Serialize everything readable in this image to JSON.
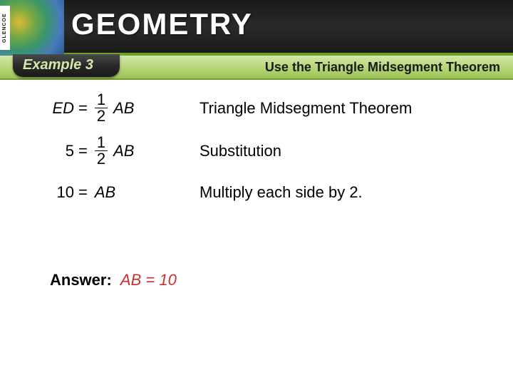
{
  "header": {
    "brand_tab": "GLENCOE",
    "title": "GEOMETRY",
    "swirl_colors": [
      "#e8c23a",
      "#7fb043",
      "#3a9b6f",
      "#4a7fc4",
      "#2a5a8a"
    ],
    "bg_gradient": [
      "#1a1a1a",
      "#2a2a2a",
      "#1a1a1a"
    ],
    "accent_border": "#6aa22f"
  },
  "subbar": {
    "example_label": "Example 3",
    "topic": "Use the Triangle Midsegment Theorem",
    "bg_gradient": [
      "#d4e8a8",
      "#b8d67a",
      "#9cc455"
    ],
    "badge_bg": [
      "#4a4a4a",
      "#2a2a2a",
      "#1a1a1a"
    ],
    "badge_text_color": "#d4e8a8"
  },
  "steps": [
    {
      "lhs": "ED",
      "lhs_italic": true,
      "eq": "=",
      "frac_num": "1",
      "frac_den": "2",
      "rhs_var": "AB",
      "reason": "Triangle Midsegment Theorem"
    },
    {
      "lhs": "5",
      "lhs_italic": false,
      "eq": "=",
      "frac_num": "1",
      "frac_den": "2",
      "rhs_var": "AB",
      "reason": "Substitution"
    },
    {
      "lhs": "10",
      "lhs_italic": false,
      "eq": "=",
      "rhs_var": "AB",
      "no_frac": true,
      "reason": "Multiply each side by 2."
    }
  ],
  "answer": {
    "label": "Answer:",
    "value": "AB = 10",
    "value_color": "#c9302c"
  },
  "typography": {
    "title_fontsize": 42,
    "body_fontsize": 22,
    "subbar_fontsize": 18,
    "font_family": "Arial"
  }
}
